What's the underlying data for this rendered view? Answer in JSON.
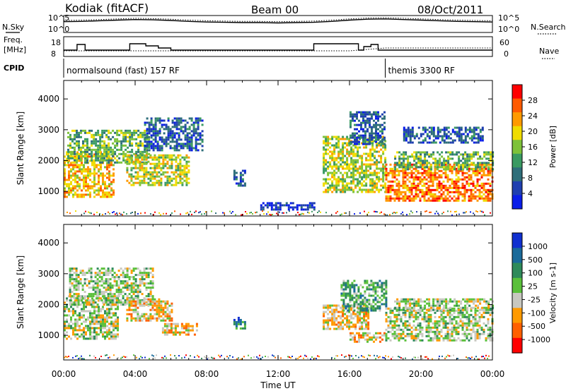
{
  "header": {
    "station": "Kodiak (fitACF)",
    "beam": "Beam 00",
    "date": "08/Oct/2011"
  },
  "panel_labels": {
    "nsky": "N.Sky",
    "nsearch": "N.Search",
    "nave": "Nave",
    "freq_line1": "Freq.",
    "freq_line2": "[MHz]",
    "cpid": "CPID"
  },
  "cpid_segments": [
    {
      "label": "normalsound (fast) 157 RF",
      "start_h": 0
    },
    {
      "label": "themis 3300 RF",
      "start_h": 18.0
    }
  ],
  "colors": {
    "power_scale": [
      "#0a1ee8",
      "#1f3fb0",
      "#2e6e7a",
      "#3a9a62",
      "#7ec23a",
      "#f0dc00",
      "#ff9a00",
      "#ff5a00",
      "#ff0000"
    ],
    "velocity_scale": [
      "#1030d0",
      "#1a6a9a",
      "#2e8a5a",
      "#5ac03a",
      "#c8c8c0",
      "#ff9a00",
      "#ff6000",
      "#ff0000"
    ]
  },
  "chart_data": [
    {
      "type": "line",
      "title": "N.Sky / N.Search",
      "y_tick_labels": [
        "10^5",
        "10^0"
      ],
      "y_tick_labels_right": [
        "10^5",
        "10^0"
      ],
      "series": [
        {
          "name": "N.Sky",
          "x": [
            0,
            1,
            2,
            3,
            4,
            5,
            6,
            7,
            8,
            9,
            10,
            11,
            12,
            13,
            14,
            15,
            16,
            17,
            18,
            19,
            20,
            21,
            22,
            23,
            24
          ],
          "y": [
            3.5,
            3.6,
            3.8,
            4.0,
            4.2,
            4.1,
            3.9,
            3.6,
            3.4,
            3.3,
            3.2,
            3.2,
            3.1,
            3.2,
            3.3,
            3.6,
            4.0,
            4.3,
            4.4,
            4.2,
            4.0,
            3.8,
            3.6,
            3.5,
            3.4
          ]
        },
        {
          "name": "N.Search",
          "x": [
            0,
            1,
            2,
            3,
            4,
            5,
            6,
            7,
            8,
            9,
            10,
            11,
            12,
            13,
            14,
            15,
            16,
            17,
            18,
            19,
            20,
            21,
            22,
            23,
            24
          ],
          "y": [
            3.9,
            4.0,
            4.2,
            4.4,
            4.6,
            4.5,
            4.3,
            4.0,
            3.8,
            3.7,
            3.6,
            3.6,
            3.5,
            3.6,
            3.7,
            4.0,
            4.4,
            4.7,
            4.8,
            4.6,
            4.4,
            4.2,
            4.0,
            3.9,
            3.8
          ]
        }
      ]
    },
    {
      "type": "line",
      "title": "Frequency / Nave",
      "ylabel": "Freq. [MHz]",
      "y_ticks": [
        8,
        18
      ],
      "y_ticks_right": [
        0,
        60
      ],
      "series": [
        {
          "name": "Freq.",
          "x": [
            0,
            0.75,
            0.75,
            1.2,
            1.2,
            3.7,
            3.7,
            4.6,
            4.6,
            5.3,
            5.3,
            6.0,
            6.0,
            14.0,
            14.0,
            16.5,
            16.5,
            16.8,
            16.8,
            17.2,
            17.2,
            17.6,
            17.6,
            18.2,
            18.2,
            24
          ],
          "y": [
            10.5,
            10.5,
            14.5,
            14.5,
            10.5,
            10.5,
            15.0,
            15.0,
            13.5,
            13.5,
            12.0,
            12.0,
            10.5,
            10.5,
            15.0,
            15.0,
            10.5,
            10.5,
            13.0,
            13.0,
            14.5,
            14.5,
            10.5,
            10.5,
            10.5,
            10.5
          ]
        },
        {
          "name": "Nave",
          "x": [
            0,
            6,
            12,
            16,
            18,
            24
          ],
          "y": [
            10,
            10,
            10,
            10,
            12,
            12
          ]
        }
      ]
    },
    {
      "type": "heatmap",
      "title": "Power",
      "xlabel": "",
      "ylabel": "Slant Range [km]",
      "xlim": [
        0,
        24
      ],
      "ylim": [
        200,
        4600
      ],
      "x_tick_labels": [
        "00:00",
        "04:00",
        "08:00",
        "12:00",
        "16:00",
        "20:00",
        "00:00"
      ],
      "y_ticks": [
        1000,
        2000,
        3000,
        4000
      ],
      "colorbar_label": "Power [dB]",
      "colorbar_ticks": [
        4,
        8,
        12,
        16,
        20,
        24,
        28
      ],
      "regions": [
        {
          "t0": 0.0,
          "t1": 2.8,
          "r0": 800,
          "r1": 2300,
          "level": 6
        },
        {
          "t0": 0.2,
          "t1": 4.8,
          "r0": 1900,
          "r1": 3000,
          "level": 4
        },
        {
          "t0": 3.5,
          "t1": 7.0,
          "r0": 1200,
          "r1": 2200,
          "level": 5
        },
        {
          "t0": 4.5,
          "t1": 7.8,
          "r0": 2300,
          "r1": 3400,
          "level": 2
        },
        {
          "t0": 9.5,
          "t1": 10.1,
          "r0": 1200,
          "r1": 1700,
          "level": 2
        },
        {
          "t0": 11.0,
          "t1": 14.0,
          "r0": 400,
          "r1": 650,
          "level": 1
        },
        {
          "t0": 14.5,
          "t1": 18.0,
          "r0": 1000,
          "r1": 2800,
          "level": 5
        },
        {
          "t0": 16.0,
          "t1": 18.0,
          "r0": 2500,
          "r1": 3600,
          "level": 2
        },
        {
          "t0": 18.0,
          "t1": 24.0,
          "r0": 700,
          "r1": 1900,
          "level": 7
        },
        {
          "t0": 18.5,
          "t1": 24.0,
          "r0": 1700,
          "r1": 2300,
          "level": 4
        },
        {
          "t0": 19.0,
          "t1": 23.5,
          "r0": 2600,
          "r1": 3100,
          "level": 2
        }
      ]
    },
    {
      "type": "heatmap",
      "title": "Velocity",
      "xlabel": "Time UT",
      "ylabel": "Slant Range [km]",
      "xlim": [
        0,
        24
      ],
      "ylim": [
        200,
        4600
      ],
      "x_tick_labels": [
        "00:00",
        "04:00",
        "08:00",
        "12:00",
        "16:00",
        "20:00",
        "00:00"
      ],
      "y_ticks": [
        1000,
        2000,
        3000,
        4000
      ],
      "colorbar_label": "Velocity [m s-1]",
      "colorbar_ticks": [
        "1000",
        "500",
        "100",
        "25",
        "-25",
        "-100",
        "-500",
        "-1000"
      ],
      "regions": [
        {
          "t0": 0.0,
          "t1": 3.0,
          "r0": 900,
          "r1": 2300,
          "level": 4
        },
        {
          "t0": 0.3,
          "t1": 5.0,
          "r0": 2000,
          "r1": 3200,
          "level": 4
        },
        {
          "t0": 3.5,
          "t1": 6.0,
          "r0": 1500,
          "r1": 2200,
          "level": 5
        },
        {
          "t0": 5.5,
          "t1": 7.5,
          "r0": 1000,
          "r1": 1400,
          "level": 5
        },
        {
          "t0": 9.5,
          "t1": 10.1,
          "r0": 1200,
          "r1": 1600,
          "level": 2
        },
        {
          "t0": 14.5,
          "t1": 17.0,
          "r0": 1200,
          "r1": 2000,
          "level": 5
        },
        {
          "t0": 15.5,
          "t1": 18.0,
          "r0": 1800,
          "r1": 2800,
          "level": 3
        },
        {
          "t0": 16.0,
          "t1": 18.0,
          "r0": 800,
          "r1": 1100,
          "level": 5
        },
        {
          "t0": 18.0,
          "t1": 24.0,
          "r0": 800,
          "r1": 1900,
          "level": 4
        },
        {
          "t0": 18.5,
          "t1": 24.0,
          "r0": 1800,
          "r1": 2200,
          "level": 4
        }
      ]
    }
  ]
}
